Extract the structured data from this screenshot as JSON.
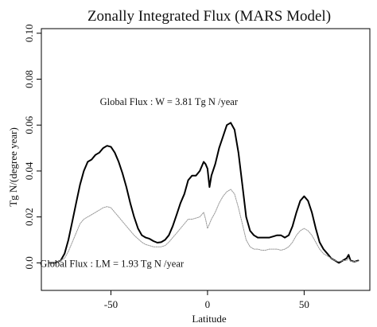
{
  "chart_data": {
    "type": "line",
    "title": "Zonally Integrated Flux (MARS Model)",
    "xlabel": "Latitude",
    "ylabel": "Tg N/(degree year)",
    "xlim": [
      -86,
      84
    ],
    "ylim": [
      -0.012,
      0.102
    ],
    "x_ticks": [
      -50,
      0,
      50
    ],
    "x_tick_labels": [
      "-50",
      "0",
      "50"
    ],
    "y_ticks": [
      0.0,
      0.02,
      0.04,
      0.06,
      0.08,
      0.1
    ],
    "y_tick_labels": [
      "0.0",
      "0.02",
      "0.04",
      "0.06",
      "0.08",
      "0.10"
    ],
    "grid": false,
    "annotations": [
      {
        "text": "Global Flux : W =  3.81  Tg N /year",
        "x": -20,
        "y": 0.0688
      },
      {
        "text": "Global Flux : LM =  1.93  Tg N /year",
        "x": -49.5,
        "y": -0.0018
      }
    ],
    "series": [
      {
        "color": "#000000",
        "line_style": "solid-thick",
        "x": [
          -82,
          -79,
          -76,
          -74,
          -72,
          -70,
          -68,
          -66,
          -64,
          -62,
          -60,
          -58,
          -56,
          -54,
          -52,
          -50,
          -48,
          -46,
          -44,
          -42,
          -40,
          -38,
          -36,
          -34,
          -32,
          -30,
          -28,
          -26,
          -24,
          -22,
          -20,
          -18,
          -16,
          -14,
          -12,
          -10,
          -8,
          -6,
          -4,
          -2,
          -1,
          0,
          1,
          2,
          4,
          6,
          8,
          10,
          12,
          14,
          16,
          18,
          20,
          22,
          24,
          26,
          28,
          30,
          32,
          34,
          36,
          38,
          40,
          42,
          44,
          46,
          48,
          50,
          52,
          54,
          56,
          58,
          60,
          62,
          64,
          66,
          68,
          70,
          72,
          73,
          74,
          76,
          78
        ],
        "y": [
          0.0,
          0.0,
          0.001,
          0.004,
          0.01,
          0.018,
          0.026,
          0.034,
          0.04,
          0.044,
          0.045,
          0.047,
          0.048,
          0.05,
          0.051,
          0.0505,
          0.048,
          0.044,
          0.039,
          0.033,
          0.026,
          0.02,
          0.015,
          0.012,
          0.011,
          0.0105,
          0.0095,
          0.0088,
          0.009,
          0.01,
          0.012,
          0.016,
          0.021,
          0.026,
          0.03,
          0.036,
          0.038,
          0.038,
          0.04,
          0.044,
          0.043,
          0.041,
          0.033,
          0.038,
          0.043,
          0.05,
          0.055,
          0.06,
          0.061,
          0.058,
          0.048,
          0.034,
          0.02,
          0.014,
          0.012,
          0.011,
          0.011,
          0.011,
          0.011,
          0.0115,
          0.012,
          0.012,
          0.011,
          0.012,
          0.016,
          0.022,
          0.027,
          0.029,
          0.027,
          0.022,
          0.015,
          0.009,
          0.006,
          0.004,
          0.002,
          0.001,
          0.0,
          0.001,
          0.002,
          0.0035,
          0.001,
          0.0005,
          0.001
        ]
      },
      {
        "color": "#999999",
        "line_style": "dotted-thin",
        "x": [
          -82,
          -79,
          -76,
          -74,
          -72,
          -70,
          -68,
          -66,
          -64,
          -62,
          -60,
          -58,
          -56,
          -54,
          -52,
          -50,
          -48,
          -46,
          -44,
          -42,
          -40,
          -38,
          -36,
          -34,
          -32,
          -30,
          -28,
          -26,
          -24,
          -22,
          -20,
          -18,
          -16,
          -14,
          -12,
          -10,
          -8,
          -6,
          -4,
          -2,
          -1,
          0,
          1,
          2,
          4,
          6,
          8,
          10,
          12,
          14,
          16,
          18,
          20,
          22,
          24,
          26,
          28,
          30,
          32,
          34,
          36,
          38,
          40,
          42,
          44,
          46,
          48,
          50,
          52,
          54,
          56,
          58,
          60,
          62,
          64,
          66,
          68,
          70,
          72,
          73,
          74,
          76,
          78
        ],
        "y": [
          0.0,
          0.0,
          0.001,
          0.002,
          0.005,
          0.009,
          0.013,
          0.017,
          0.019,
          0.02,
          0.021,
          0.022,
          0.023,
          0.024,
          0.0245,
          0.024,
          0.022,
          0.02,
          0.018,
          0.016,
          0.014,
          0.012,
          0.0105,
          0.009,
          0.008,
          0.0075,
          0.007,
          0.007,
          0.007,
          0.0075,
          0.009,
          0.011,
          0.013,
          0.015,
          0.017,
          0.019,
          0.019,
          0.0195,
          0.02,
          0.022,
          0.019,
          0.015,
          0.017,
          0.019,
          0.022,
          0.026,
          0.029,
          0.031,
          0.032,
          0.03,
          0.024,
          0.017,
          0.01,
          0.007,
          0.006,
          0.006,
          0.0055,
          0.0055,
          0.006,
          0.006,
          0.006,
          0.0055,
          0.006,
          0.007,
          0.009,
          0.012,
          0.014,
          0.015,
          0.014,
          0.012,
          0.009,
          0.006,
          0.004,
          0.003,
          0.002,
          0.001,
          0.0005,
          0.001,
          0.001,
          0.002,
          0.0008,
          0.0005,
          0.0008
        ]
      }
    ]
  }
}
